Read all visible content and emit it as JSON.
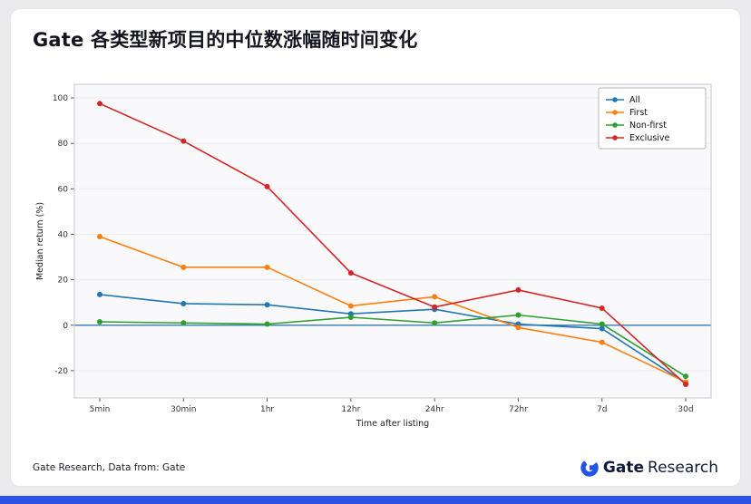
{
  "title": "Gate 各类型新项目的中位数涨幅随时间变化",
  "footer": {
    "source": "Gate Research, Data from: Gate",
    "brand_gate": "Gate",
    "brand_research": "Research"
  },
  "colors": {
    "accent": "#2354e6",
    "bottom_bar": "#2b51e8",
    "zero_line": "#4682b4",
    "plot_bg": "#f9f9fb",
    "plot_border": "#c9c9d2",
    "grid": "#ececf1"
  },
  "chart_data": {
    "type": "line",
    "title": "Gate 各类型新项目的中位数涨幅随时间变化",
    "xlabel": "Time after listing",
    "ylabel": "Median return (%)",
    "categories": [
      "5min",
      "30min",
      "1hr",
      "12hr",
      "24hr",
      "72hr",
      "7d",
      "30d"
    ],
    "series": [
      {
        "name": "All",
        "color": "#1f77b4",
        "values": [
          13.5,
          9.5,
          9,
          5,
          7,
          0.5,
          -1.5,
          -25.5
        ]
      },
      {
        "name": "First",
        "color": "#ff7f0e",
        "values": [
          39,
          25.5,
          25.5,
          8.5,
          12.5,
          -1,
          -7.5,
          -25
        ]
      },
      {
        "name": "Non-first",
        "color": "#2ca02c",
        "values": [
          1.5,
          1,
          0.5,
          3.5,
          1,
          4.5,
          0.5,
          -22.5
        ]
      },
      {
        "name": "Exclusive",
        "color": "#d62728",
        "values": [
          97.5,
          81,
          61,
          23,
          8,
          15.5,
          7.5,
          -26
        ]
      }
    ],
    "yticks": [
      -20,
      0,
      20,
      40,
      60,
      80,
      100
    ],
    "ylim": [
      -32,
      106
    ],
    "grid": true,
    "legend_position": "top-right",
    "zero_line": 0
  }
}
